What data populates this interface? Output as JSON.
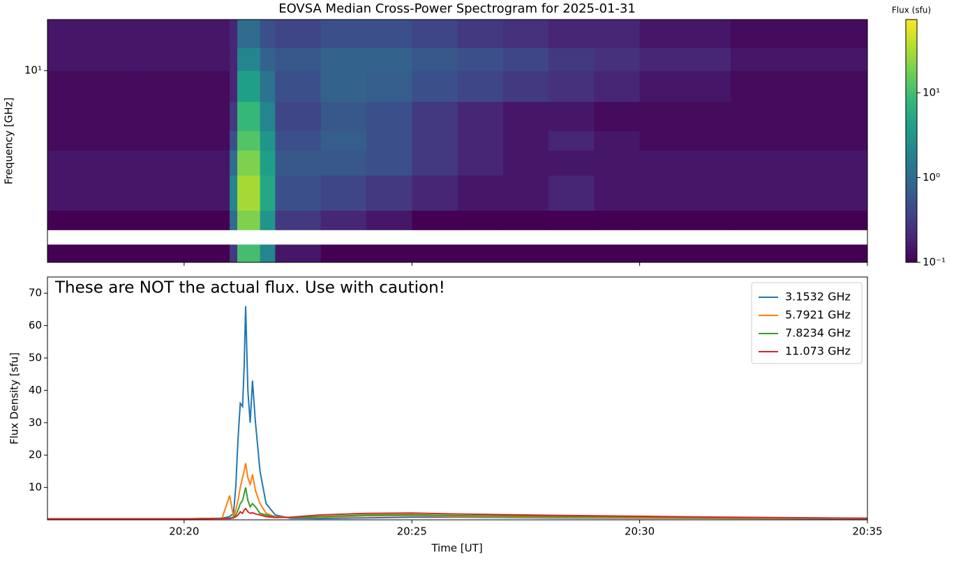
{
  "chart_data": [
    {
      "type": "heatmap",
      "title": "EOVSA Median Cross-Power Spectrogram for 2025-01-31",
      "ylabel": "Frequency [GHz]",
      "colorbar_label": "Flux (sfu)",
      "x": [
        "20:17",
        "20:19",
        "20:21",
        "20:21:10",
        "20:21:40",
        "20:22",
        "20:23",
        "20:24",
        "20:25",
        "20:26",
        "20:27",
        "20:28",
        "20:29",
        "20:30",
        "20:32",
        "20:35"
      ],
      "y": [
        1.1,
        1.35,
        1.6,
        2,
        3,
        4,
        5,
        7,
        10,
        13,
        18
      ],
      "z": [
        [
          0.1,
          0.1,
          0.3,
          10,
          2,
          0.15,
          0.1,
          0.1,
          0.1,
          0.1,
          0.1,
          0.1,
          0.1,
          0.1,
          0.1
        ],
        [
          null,
          null,
          null,
          null,
          null,
          null,
          null,
          null,
          null,
          null,
          null,
          null,
          null,
          null,
          null
        ],
        [
          0.1,
          0.1,
          1,
          20,
          3,
          0.3,
          0.2,
          0.15,
          0.1,
          0.1,
          0.1,
          0.1,
          0.1,
          0.1,
          0.1
        ],
        [
          0.15,
          0.15,
          2,
          30,
          5,
          0.5,
          0.4,
          0.3,
          0.2,
          0.15,
          0.15,
          0.2,
          0.15,
          0.15,
          0.15
        ],
        [
          0.15,
          0.15,
          1,
          20,
          4,
          0.6,
          0.6,
          0.5,
          0.3,
          0.2,
          0.15,
          0.15,
          0.15,
          0.15,
          0.15
        ],
        [
          0.12,
          0.12,
          0.5,
          12,
          3,
          0.5,
          0.7,
          0.5,
          0.3,
          0.2,
          0.15,
          0.2,
          0.15,
          0.12,
          0.12
        ],
        [
          0.12,
          0.12,
          0.3,
          8,
          2,
          0.4,
          0.6,
          0.5,
          0.3,
          0.2,
          0.15,
          0.15,
          0.12,
          0.12,
          0.12
        ],
        [
          0.12,
          0.12,
          0.2,
          4,
          1.2,
          0.5,
          0.8,
          0.7,
          0.5,
          0.4,
          0.3,
          0.25,
          0.2,
          0.15,
          0.12
        ],
        [
          0.15,
          0.15,
          0.2,
          2,
          0.8,
          0.6,
          0.8,
          0.8,
          0.6,
          0.5,
          0.4,
          0.3,
          0.25,
          0.2,
          0.15
        ],
        [
          0.15,
          0.15,
          0.2,
          1,
          0.5,
          0.4,
          0.5,
          0.5,
          0.4,
          0.3,
          0.25,
          0.2,
          0.2,
          0.15,
          0.12
        ]
      ],
      "xlim": [
        "20:17",
        "20:35"
      ],
      "ylim": [
        1.1,
        18
      ],
      "ylog": true,
      "yticks": [
        {
          "value": 10,
          "label": "10¹"
        }
      ],
      "colormap": "viridis",
      "clim": [
        0.1,
        73
      ],
      "clog": true,
      "cticks": [
        {
          "value": 0.1,
          "label": "10⁻¹"
        },
        {
          "value": 1,
          "label": "10⁰"
        },
        {
          "value": 10,
          "label": "10¹"
        }
      ]
    },
    {
      "type": "line",
      "annotation": "These are NOT the actual flux. Use with caution!",
      "xlabel": "Time [UT]",
      "ylabel": "Flux Density [sfu]",
      "x": [
        "20:17:00",
        "20:20:00",
        "20:20:50",
        "20:21:00",
        "20:21:05",
        "20:21:08",
        "20:21:11",
        "20:21:14",
        "20:21:17",
        "20:21:19",
        "20:21:21",
        "20:21:24",
        "20:21:27",
        "20:21:30",
        "20:21:34",
        "20:21:40",
        "20:21:48",
        "20:22:00",
        "20:22:20",
        "20:23:00",
        "20:24:00",
        "20:25:00",
        "20:26:00",
        "20:28:00",
        "20:30:00",
        "20:32:00",
        "20:35:00"
      ],
      "series": [
        {
          "name": "3.1532 GHz",
          "color": "#1f77b4",
          "values": [
            0.3,
            0.3,
            0.5,
            1,
            2,
            10,
            25,
            36,
            35,
            47,
            66,
            40,
            30,
            43,
            30,
            15,
            5,
            1.5,
            0.5,
            0.4,
            0.6,
            0.8,
            0.8,
            0.6,
            0.5,
            0.4,
            0.3
          ]
        },
        {
          "name": "5.7921 GHz",
          "color": "#ff7f0e",
          "values": [
            0.3,
            0.3,
            0.5,
            7.5,
            1,
            3,
            6,
            10,
            13,
            15,
            17.5,
            13,
            11,
            14,
            9,
            5,
            2,
            1,
            0.7,
            0.8,
            1.2,
            1.3,
            1,
            0.8,
            0.6,
            0.5,
            0.4
          ]
        },
        {
          "name": "7.8234 GHz",
          "color": "#2ca02c",
          "values": [
            0.3,
            0.3,
            0.4,
            0.5,
            0.8,
            1.5,
            3,
            5,
            6,
            8,
            10,
            6,
            4,
            5,
            4,
            2,
            1.5,
            0.8,
            0.7,
            1,
            1.5,
            1.6,
            1.3,
            1.1,
            0.9,
            0.7,
            0.5
          ]
        },
        {
          "name": "11.073 GHz",
          "color": "#d62728",
          "values": [
            0.3,
            0.3,
            0.4,
            0.4,
            0.6,
            1,
            1.5,
            2.5,
            2,
            3,
            3.5,
            2.5,
            2,
            2.2,
            1.8,
            1.5,
            1,
            0.7,
            0.8,
            1.5,
            2,
            2.1,
            1.8,
            1.4,
            1.1,
            0.8,
            0.5
          ]
        }
      ],
      "xlim": [
        "20:17",
        "20:35"
      ],
      "ylim": [
        0,
        75
      ],
      "xticks": [
        "20:20",
        "20:25",
        "20:30",
        "20:35"
      ],
      "yticks": [
        10,
        20,
        30,
        40,
        50,
        60,
        70
      ],
      "legend": "upper right"
    }
  ]
}
